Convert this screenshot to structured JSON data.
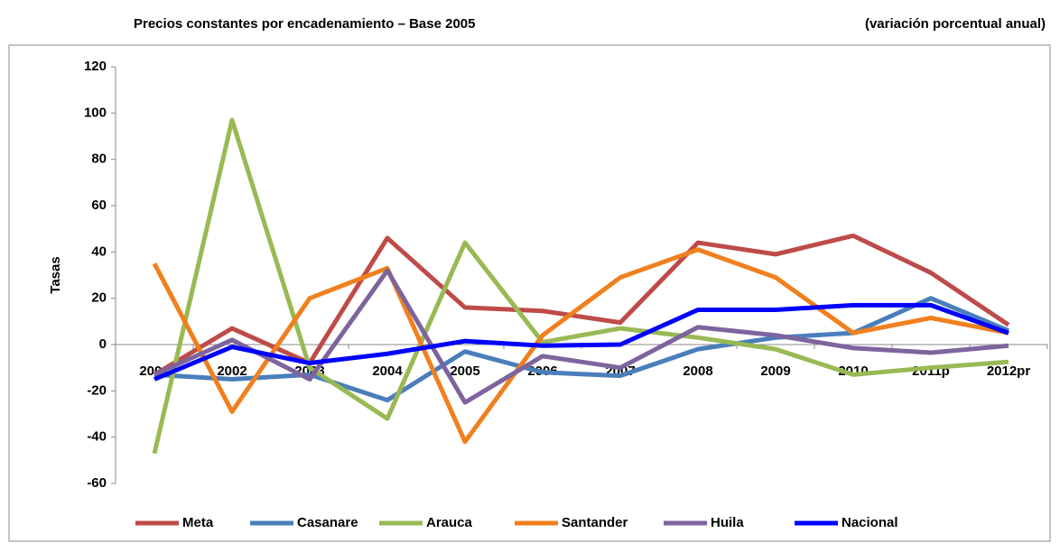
{
  "chart_data": {
    "type": "line",
    "title": "Precios constantes por encadenamiento – Base 2005",
    "subtitle": "(variación porcentual anual)",
    "y_label": "Tasas",
    "categories": [
      "2001",
      "2002",
      "2003",
      "2004",
      "2005",
      "2006",
      "2007",
      "2008",
      "2009",
      "2010",
      "2011p",
      "2012pr"
    ],
    "series": [
      {
        "name": "Meta",
        "color": "#be4b48",
        "values": [
          -13,
          7,
          -8,
          46,
          16,
          14.5,
          9.5,
          44,
          39,
          47,
          31,
          8.5
        ]
      },
      {
        "name": "Casanare",
        "color": "#4a7ebb",
        "values": [
          -13,
          -15,
          -13,
          -24,
          -3,
          -12,
          -13.5,
          -2,
          3,
          5,
          20,
          6
        ]
      },
      {
        "name": "Arauca",
        "color": "#98b954",
        "values": [
          -47,
          97,
          -10,
          -32,
          44,
          1,
          7,
          3,
          -2,
          -13,
          -10,
          -7.5
        ]
      },
      {
        "name": "Santander",
        "color": "#f0801e",
        "values": [
          35,
          -29,
          20,
          33,
          -42,
          4,
          29,
          41,
          29,
          5,
          11.5,
          5
        ]
      },
      {
        "name": "Huila",
        "color": "#7e649e",
        "values": [
          -13,
          2,
          -15,
          32,
          -25,
          -5,
          -10,
          7.5,
          4,
          -1.5,
          -3.5,
          -0.5
        ]
      },
      {
        "name": "Nacional",
        "color": "#0000ff",
        "values": [
          -15,
          -1,
          -8,
          -4,
          1.5,
          -0.5,
          0,
          15,
          15,
          17,
          17,
          5
        ]
      }
    ],
    "ylim": [
      -60,
      120
    ],
    "yticks": [
      -60,
      -40,
      -20,
      0,
      20,
      40,
      60,
      80,
      100,
      120
    ],
    "grid": false
  }
}
